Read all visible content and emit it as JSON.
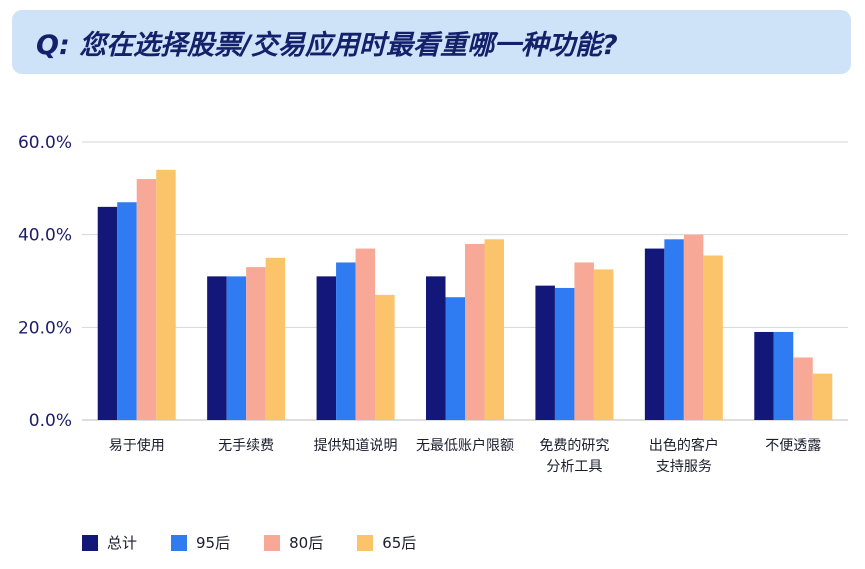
{
  "header": {
    "question": "Q: 您在选择股票/交易应用时最看重哪一种功能?"
  },
  "chart_data": {
    "type": "bar",
    "title": "Q: 您在选择股票/交易应用时最看重哪一种功能?",
    "xlabel": "",
    "ylabel": "",
    "ylim": [
      0,
      60
    ],
    "yticks": [
      "0.0%",
      "20.0%",
      "40.0%",
      "60.0%"
    ],
    "ytick_values": [
      0,
      20,
      40,
      60
    ],
    "grid": true,
    "legend_position": "bottom-left",
    "categories": [
      [
        "易于使用"
      ],
      [
        "无手续费"
      ],
      [
        "提供知道说明"
      ],
      [
        "无最低账户限额"
      ],
      [
        "免费的研究",
        "分析工具"
      ],
      [
        "出色的客户",
        "支持服务"
      ],
      [
        "不便透露"
      ]
    ],
    "series": [
      {
        "name": "总计",
        "color": "#14177a",
        "values": [
          46,
          31,
          31,
          31,
          29,
          37,
          19
        ]
      },
      {
        "name": "95后",
        "color": "#2f7cf2",
        "values": [
          47,
          31,
          34,
          26.5,
          28.5,
          39,
          19
        ]
      },
      {
        "name": "80后",
        "color": "#f8a896",
        "values": [
          52,
          33,
          37,
          38,
          34,
          40,
          13.5
        ]
      },
      {
        "name": "65后",
        "color": "#fbc36a",
        "values": [
          54,
          35,
          27,
          39,
          32.5,
          35.5,
          10
        ]
      }
    ]
  }
}
